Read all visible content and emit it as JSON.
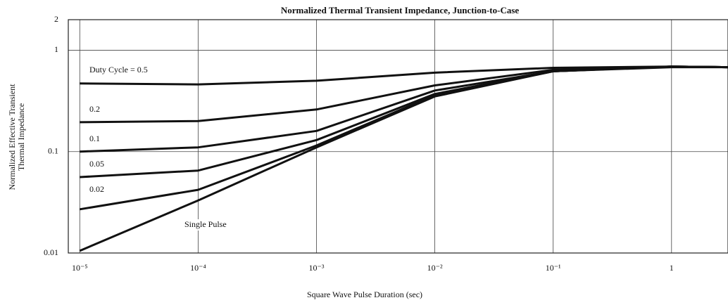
{
  "chart_data": {
    "type": "line",
    "title": "Normalized Thermal Transient Impedance, Junction-to-Case",
    "x_label": "Square Wave Pulse Duration (sec)",
    "y_label": [
      "Normalized Effective Transient",
      "Thermal Impedance"
    ],
    "log_x": true,
    "log_y": true,
    "grid": true,
    "x": [
      1e-05,
      0.0001,
      0.001,
      0.01,
      0.1,
      1,
      3
    ],
    "xlim": [
      8e-06,
      3
    ],
    "ylim": [
      0.01,
      2
    ],
    "xticks": [
      {
        "value": 1e-05,
        "label": "10⁻⁵"
      },
      {
        "value": 0.0001,
        "label": "10⁻⁴"
      },
      {
        "value": 0.001,
        "label": "10⁻³"
      },
      {
        "value": 0.01,
        "label": "10⁻²"
      },
      {
        "value": 0.1,
        "label": "10⁻¹"
      },
      1
    ],
    "yticks": [
      0.01,
      0.1,
      1,
      2
    ],
    "series": [
      {
        "name": "Duty Cycle = 0.5",
        "color": "#111111",
        "values": [
          0.47,
          0.46,
          0.5,
          0.6,
          0.67,
          0.69,
          0.68
        ]
      },
      {
        "name": "0.2",
        "color": "#111111",
        "values": [
          0.195,
          0.2,
          0.26,
          0.45,
          0.64,
          0.69,
          0.68
        ]
      },
      {
        "name": "0.1",
        "color": "#111111",
        "values": [
          0.1,
          0.11,
          0.16,
          0.4,
          0.62,
          0.69,
          0.68
        ]
      },
      {
        "name": "0.05",
        "color": "#111111",
        "values": [
          0.056,
          0.065,
          0.13,
          0.37,
          0.62,
          0.69,
          0.68
        ]
      },
      {
        "name": "0.02",
        "color": "#111111",
        "values": [
          0.027,
          0.042,
          0.115,
          0.36,
          0.62,
          0.69,
          0.68
        ]
      },
      {
        "name": "Single Pulse",
        "color": "#111111",
        "values": [
          0.0105,
          0.033,
          0.11,
          0.35,
          0.62,
          0.68,
          0.68
        ]
      }
    ]
  }
}
